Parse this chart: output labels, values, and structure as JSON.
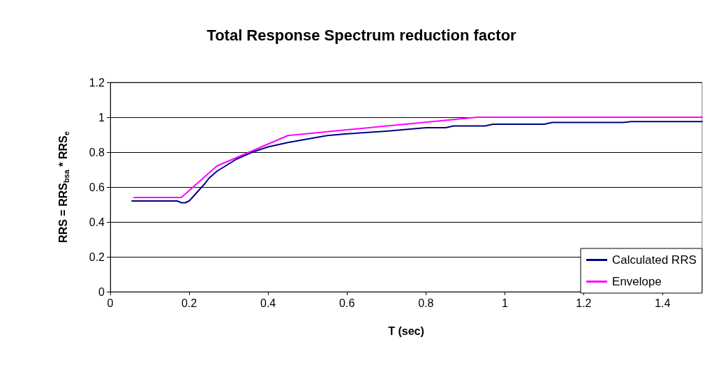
{
  "chart_data": {
    "type": "line",
    "title": "Total Response Spectrum reduction factor",
    "xlabel": "T (sec)",
    "ylabel": "RRS = RRS$_{bsa}$ * RRS$_{e}$",
    "xlim": [
      0,
      1.5
    ],
    "xticks": [
      0,
      0.2,
      0.4,
      0.6,
      0.8,
      1,
      1.2,
      1.4
    ],
    "ylim": [
      0,
      1.2
    ],
    "yticks": [
      0,
      0.2,
      0.4,
      0.6,
      0.8,
      1,
      1.2
    ],
    "grid": "y",
    "legend": "bottom right",
    "marker": "none",
    "line_style": "solid",
    "series": [
      {
        "name": "Calculated RRS",
        "color": "#000080",
        "x": [
          0.055,
          0.17,
          0.18,
          0.19,
          0.2,
          0.24,
          0.25,
          0.27,
          0.32,
          0.36,
          0.4,
          0.45,
          0.5,
          0.55,
          0.6,
          0.7,
          0.8,
          0.85,
          0.87,
          0.95,
          0.97,
          1.1,
          1.12,
          1.3,
          1.32,
          1.5
        ],
        "values": [
          0.52,
          0.52,
          0.51,
          0.51,
          0.52,
          0.62,
          0.65,
          0.69,
          0.76,
          0.8,
          0.83,
          0.855,
          0.875,
          0.895,
          0.905,
          0.92,
          0.94,
          0.94,
          0.95,
          0.95,
          0.96,
          0.96,
          0.97,
          0.97,
          0.975,
          0.975
        ]
      },
      {
        "name": "Envelope",
        "color": "#ff00ff",
        "x": [
          0.06,
          0.18,
          0.27,
          0.45,
          0.93,
          1.5
        ],
        "values": [
          0.54,
          0.54,
          0.72,
          0.895,
          1.0,
          1.0
        ]
      }
    ]
  }
}
